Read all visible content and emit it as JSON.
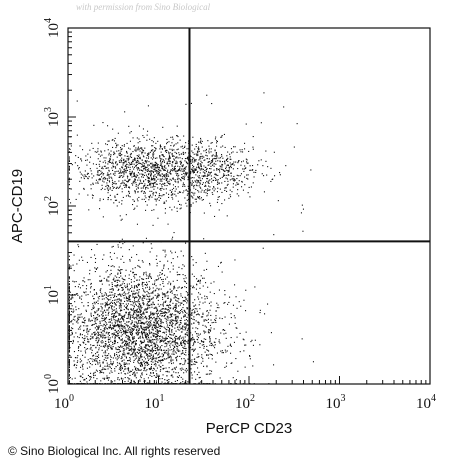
{
  "watermark": "with permission from Sino Biological",
  "copyright": "© Sino Biological Inc. All rights reserved",
  "chart_data": {
    "type": "scatter",
    "title": "",
    "xlabel": "PerCP CD23",
    "ylabel": "APC-CD19",
    "x_scale": "log",
    "y_scale": "log",
    "xlim": [
      1,
      10000
    ],
    "ylim": [
      1,
      10000
    ],
    "x_ticks": [
      {
        "base": "10",
        "exp": "0"
      },
      {
        "base": "10",
        "exp": "1"
      },
      {
        "base": "10",
        "exp": "2"
      },
      {
        "base": "10",
        "exp": "3"
      },
      {
        "base": "10",
        "exp": "4"
      }
    ],
    "y_ticks": [
      {
        "base": "10",
        "exp": "0"
      },
      {
        "base": "10",
        "exp": "1"
      },
      {
        "base": "10",
        "exp": "2"
      },
      {
        "base": "10",
        "exp": "3"
      },
      {
        "base": "10",
        "exp": "4"
      }
    ],
    "quadrant_gates": {
      "x": 22,
      "y": 40
    },
    "grid": false,
    "legend": "none",
    "populations": [
      {
        "x_center": 6,
        "y_center": 4,
        "x_spread_decades": 0.45,
        "y_spread_decades": 0.38,
        "relative_density": 0.66
      },
      {
        "x_center": 8,
        "y_center": 250,
        "x_spread_decades": 0.42,
        "y_spread_decades": 0.18,
        "relative_density": 0.26
      },
      {
        "x_center": 40,
        "y_center": 250,
        "x_spread_decades": 0.3,
        "y_spread_decades": 0.16,
        "relative_density": 0.08
      }
    ],
    "marker_color": "#111111"
  }
}
